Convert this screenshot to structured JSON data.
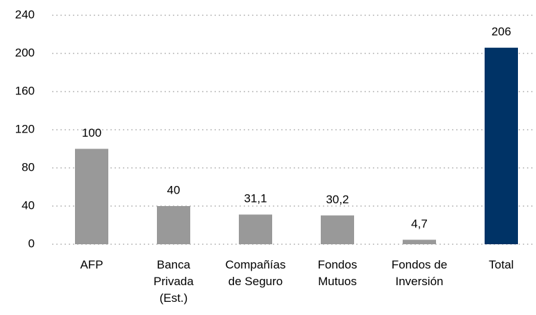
{
  "chart_data": {
    "type": "bar",
    "categories": [
      "AFP",
      "Banca\nPrivada\n(Est.)",
      "Compañías\nde Seguro",
      "Fondos\nMutuos",
      "Fondos de\nInversión",
      "Total"
    ],
    "values": [
      100,
      40,
      31.1,
      30.2,
      4.7,
      206
    ],
    "value_labels": [
      "100",
      "40",
      "31,1",
      "30,2",
      "4,7",
      "206"
    ],
    "colors": [
      "#999999",
      "#999999",
      "#999999",
      "#999999",
      "#999999",
      "#003366"
    ],
    "ylim": [
      0,
      240
    ],
    "yticks": [
      0,
      40,
      80,
      120,
      160,
      200,
      240
    ],
    "grid": true
  }
}
